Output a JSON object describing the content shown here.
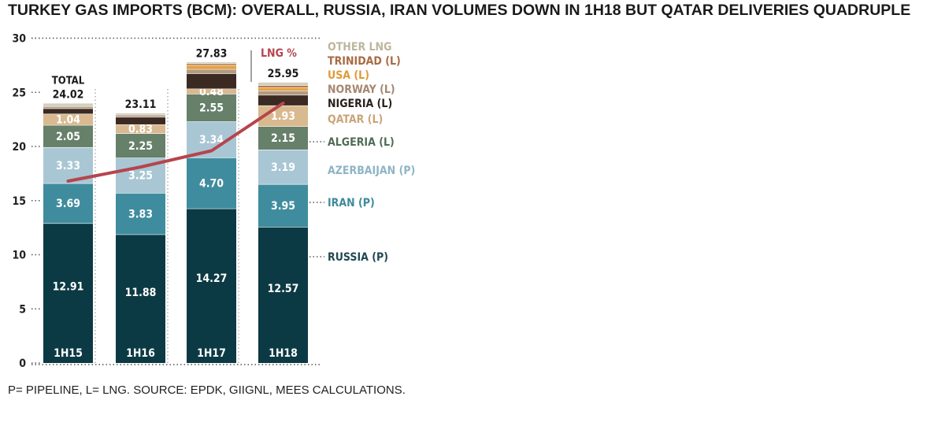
{
  "page": {
    "title": "TURKEY GAS IMPORTS (BCM): OVERALL, RUSSIA, IRAN VOLUMES DOWN IN 1H18 BUT QATAR DELIVERIES QUADRUPLE",
    "footnote": "P= PIPELINE, L= LNG. SOURCE: EPDK, GIIGNL, MEES CALCULATIONS."
  },
  "chart_data": {
    "type": "bar",
    "stacked": true,
    "categories": [
      "1H15",
      "1H16",
      "1H17",
      "1H18"
    ],
    "ylim": [
      0,
      30
    ],
    "yticks": [
      "0",
      "5",
      "10",
      "15",
      "20",
      "25",
      "30"
    ],
    "total_label": "TOTAL",
    "totals": [
      "24.02",
      "23.11",
      "27.83",
      "25.95"
    ],
    "series": [
      {
        "name": "RUSSIA (P)",
        "color": "#0c3a44",
        "label_color": "#1f4a52",
        "values": [
          12.91,
          11.88,
          14.27,
          12.57
        ],
        "labels": [
          "12.91",
          "11.88",
          "14.27",
          "12.57"
        ]
      },
      {
        "name": "IRAN (P)",
        "color": "#3f8c9e",
        "label_color": "#3d8a9b",
        "values": [
          3.69,
          3.83,
          4.7,
          3.95
        ],
        "labels": [
          "3.69",
          "3.83",
          "4.70",
          "3.95"
        ]
      },
      {
        "name": "AZERBAIJAN (P)",
        "color": "#a9c6d4",
        "label_color": "#8fb4c4",
        "values": [
          3.33,
          3.25,
          3.34,
          3.19
        ],
        "labels": [
          "3.33",
          "3.25",
          "3.34",
          "3.19"
        ]
      },
      {
        "name": "ALGERIA (L)",
        "color": "#66806a",
        "label_color": "#4f6d55",
        "values": [
          2.05,
          2.25,
          2.55,
          2.15
        ],
        "labels": [
          "2.05",
          "2.25",
          "2.55",
          "2.15"
        ]
      },
      {
        "name": "QATAR (L)",
        "color": "#d9b98f",
        "label_color": "#c8a57a",
        "values": [
          1.04,
          0.83,
          0.48,
          1.93
        ],
        "labels": [
          "1.04",
          "0.83",
          "0.48",
          "1.93"
        ]
      },
      {
        "name": "NIGERIA (L)",
        "color": "#3b2a22",
        "label_color": "#2a211c",
        "values": [
          0.5,
          0.69,
          1.4,
          0.97
        ],
        "labels": []
      },
      {
        "name": "NORWAY (L)",
        "color": "#b39a82",
        "label_color": "#a58770",
        "values": [
          0.2,
          0.2,
          0.4,
          0.4
        ],
        "labels": []
      },
      {
        "name": "USA (L)",
        "color": "#e2a346",
        "label_color": "#e09a38",
        "values": [
          0.0,
          0.0,
          0.37,
          0.29
        ],
        "labels": []
      },
      {
        "name": "TRINIDAD (L)",
        "color": "#b9794a",
        "label_color": "#a86a43",
        "values": [
          0.0,
          0.0,
          0.16,
          0.2
        ],
        "labels": []
      },
      {
        "name": "OTHER LNG",
        "color": "#d3cfbf",
        "label_color": "#bdb69c",
        "values": [
          0.3,
          0.18,
          0.16,
          0.3
        ],
        "labels": []
      }
    ],
    "line": {
      "name": "LNG %",
      "color": "#b5454d",
      "values": [
        16.8,
        18.1,
        19.6,
        24.0
      ]
    },
    "grid": false,
    "legend": "right"
  }
}
